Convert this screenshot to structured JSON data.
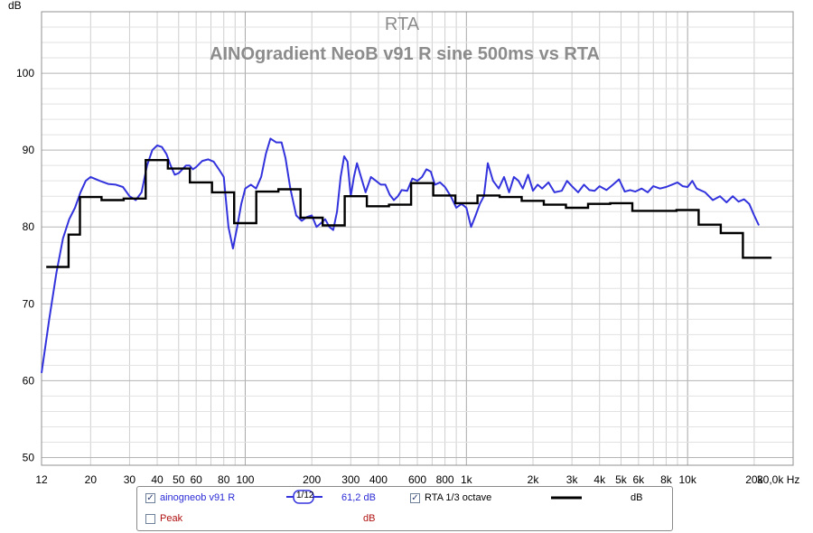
{
  "chart_data": {
    "type": "line",
    "title": "RTA",
    "subtitle": "AINOgradient NeoB v91 R sine 500ms vs RTA",
    "ylabel": "dB",
    "xlabel": "Hz",
    "x_scale": "log",
    "xlim": [
      12,
      30000
    ],
    "ylim": [
      49,
      108
    ],
    "grid": true,
    "x_tick_labels": [
      {
        "v": 12,
        "t": "12"
      },
      {
        "v": 20,
        "t": "20"
      },
      {
        "v": 30,
        "t": "30"
      },
      {
        "v": 40,
        "t": "40"
      },
      {
        "v": 50,
        "t": "50"
      },
      {
        "v": 60,
        "t": "60"
      },
      {
        "v": 80,
        "t": "80"
      },
      {
        "v": 100,
        "t": "100"
      },
      {
        "v": 200,
        "t": "200"
      },
      {
        "v": 300,
        "t": "300"
      },
      {
        "v": 400,
        "t": "400"
      },
      {
        "v": 600,
        "t": "600"
      },
      {
        "v": 800,
        "t": "800"
      },
      {
        "v": 1000,
        "t": "1k"
      },
      {
        "v": 2000,
        "t": "2k"
      },
      {
        "v": 3000,
        "t": "3k"
      },
      {
        "v": 4000,
        "t": "4k"
      },
      {
        "v": 5000,
        "t": "5k"
      },
      {
        "v": 6000,
        "t": "6k"
      },
      {
        "v": 8000,
        "t": "8k"
      },
      {
        "v": 10000,
        "t": "10k"
      },
      {
        "v": 20000,
        "t": "20k"
      },
      {
        "v": 30000,
        "t": "30,0k Hz"
      }
    ],
    "y_ticks": [
      50,
      60,
      70,
      80,
      90,
      100
    ],
    "series": [
      {
        "name": "ainogneob v91 R",
        "color": "#3333dd",
        "points": [
          [
            12,
            61
          ],
          [
            13,
            68
          ],
          [
            14,
            74
          ],
          [
            15,
            78.5
          ],
          [
            16,
            81
          ],
          [
            17,
            82.5
          ],
          [
            18,
            84.5
          ],
          [
            19,
            86
          ],
          [
            20,
            86.5
          ],
          [
            22,
            86
          ],
          [
            24,
            85.6
          ],
          [
            26,
            85.5
          ],
          [
            28,
            85.2
          ],
          [
            30,
            84
          ],
          [
            32,
            83.5
          ],
          [
            34,
            84.5
          ],
          [
            36,
            88
          ],
          [
            38,
            90
          ],
          [
            40,
            90.6
          ],
          [
            42,
            90.4
          ],
          [
            44,
            89.5
          ],
          [
            46,
            88
          ],
          [
            48,
            86.8
          ],
          [
            50,
            87
          ],
          [
            52,
            87.5
          ],
          [
            54,
            88
          ],
          [
            56,
            88
          ],
          [
            58,
            87.5
          ],
          [
            60,
            87.8
          ],
          [
            64,
            88.6
          ],
          [
            68,
            88.8
          ],
          [
            72,
            88.5
          ],
          [
            76,
            87.5
          ],
          [
            80,
            86.5
          ],
          [
            84,
            80
          ],
          [
            88,
            77.2
          ],
          [
            92,
            80
          ],
          [
            96,
            83
          ],
          [
            100,
            85
          ],
          [
            106,
            85.5
          ],
          [
            112,
            85
          ],
          [
            118,
            86.5
          ],
          [
            124,
            89.5
          ],
          [
            130,
            91.5
          ],
          [
            138,
            91
          ],
          [
            146,
            91
          ],
          [
            152,
            89
          ],
          [
            160,
            85
          ],
          [
            170,
            81.5
          ],
          [
            180,
            80.8
          ],
          [
            190,
            81.3
          ],
          [
            200,
            81.5
          ],
          [
            210,
            80
          ],
          [
            220,
            80.5
          ],
          [
            230,
            81
          ],
          [
            240,
            80
          ],
          [
            250,
            79.6
          ],
          [
            260,
            82
          ],
          [
            270,
            86.5
          ],
          [
            280,
            89.2
          ],
          [
            290,
            88.5
          ],
          [
            300,
            84
          ],
          [
            310,
            86.5
          ],
          [
            320,
            88.3
          ],
          [
            330,
            87
          ],
          [
            350,
            84.5
          ],
          [
            370,
            86.5
          ],
          [
            390,
            86
          ],
          [
            410,
            85.5
          ],
          [
            430,
            85.5
          ],
          [
            450,
            84.2
          ],
          [
            470,
            83.5
          ],
          [
            490,
            84
          ],
          [
            510,
            84.8
          ],
          [
            540,
            84.7
          ],
          [
            570,
            86.3
          ],
          [
            600,
            86
          ],
          [
            630,
            86.5
          ],
          [
            660,
            87.5
          ],
          [
            690,
            87.2
          ],
          [
            720,
            85.5
          ],
          [
            760,
            85.8
          ],
          [
            800,
            85.2
          ],
          [
            850,
            84
          ],
          [
            900,
            82.5
          ],
          [
            950,
            83
          ],
          [
            1000,
            82.5
          ],
          [
            1050,
            80
          ],
          [
            1100,
            81.5
          ],
          [
            1150,
            83
          ],
          [
            1200,
            84
          ],
          [
            1250,
            88.3
          ],
          [
            1320,
            86
          ],
          [
            1400,
            85
          ],
          [
            1480,
            86.5
          ],
          [
            1560,
            84.5
          ],
          [
            1640,
            86.5
          ],
          [
            1720,
            86
          ],
          [
            1800,
            85
          ],
          [
            1900,
            86.8
          ],
          [
            2000,
            84.7
          ],
          [
            2100,
            85.5
          ],
          [
            2200,
            85
          ],
          [
            2350,
            85.8
          ],
          [
            2500,
            84.5
          ],
          [
            2700,
            84.7
          ],
          [
            2850,
            86
          ],
          [
            3000,
            85.3
          ],
          [
            3200,
            84.5
          ],
          [
            3400,
            85.5
          ],
          [
            3600,
            84.8
          ],
          [
            3800,
            84.7
          ],
          [
            4000,
            85.3
          ],
          [
            4300,
            84.8
          ],
          [
            4600,
            85.5
          ],
          [
            4900,
            86.2
          ],
          [
            5200,
            84.6
          ],
          [
            5500,
            84.8
          ],
          [
            5800,
            84.6
          ],
          [
            6200,
            85
          ],
          [
            6600,
            84.5
          ],
          [
            7000,
            85.3
          ],
          [
            7500,
            85
          ],
          [
            8000,
            85.2
          ],
          [
            8500,
            85.5
          ],
          [
            9000,
            85.8
          ],
          [
            9500,
            85.3
          ],
          [
            10000,
            85.2
          ],
          [
            10500,
            86
          ],
          [
            11000,
            85
          ],
          [
            12000,
            84.5
          ],
          [
            13000,
            83.5
          ],
          [
            14000,
            84
          ],
          [
            15000,
            83.2
          ],
          [
            16000,
            84
          ],
          [
            17000,
            83.3
          ],
          [
            18000,
            83.6
          ],
          [
            19000,
            83
          ],
          [
            20000,
            81.5
          ],
          [
            21000,
            80.2
          ]
        ]
      },
      {
        "name": "RTA 1/3 octave",
        "color": "#000000",
        "step_points": [
          [
            12.6,
            74.8
          ],
          [
            15.9,
            79
          ],
          [
            17.9,
            83.9
          ],
          [
            20,
            83.9
          ],
          [
            22.4,
            83.5
          ],
          [
            28.2,
            83.7
          ],
          [
            35.5,
            88.7
          ],
          [
            44.7,
            87.6
          ],
          [
            56.2,
            85.8
          ],
          [
            70.8,
            84.5
          ],
          [
            89.1,
            80.5
          ],
          [
            112.2,
            84.6
          ],
          [
            141.3,
            84.9
          ],
          [
            177.8,
            81.2
          ],
          [
            223.9,
            80.2
          ],
          [
            281.8,
            84
          ],
          [
            354.8,
            82.7
          ],
          [
            446.7,
            82.9
          ],
          [
            562.3,
            85.7
          ],
          [
            707.9,
            84.1
          ],
          [
            891.3,
            83.1
          ],
          [
            1122,
            84.1
          ],
          [
            1413,
            83.9
          ],
          [
            1778,
            83.4
          ],
          [
            2239,
            82.9
          ],
          [
            2818,
            82.5
          ],
          [
            3548,
            83
          ],
          [
            4467,
            83.1
          ],
          [
            5623,
            82.1
          ],
          [
            7079,
            82.1
          ],
          [
            8913,
            82.2
          ],
          [
            11220,
            80.3
          ],
          [
            14130,
            79.2
          ],
          [
            17780,
            76
          ],
          [
            22390,
            76
          ]
        ]
      }
    ]
  },
  "legend": {
    "series1_name": "ainogneob v91 R",
    "series1_smoothing": "1/12",
    "series1_value": "61,2 dB",
    "series2_name": "RTA 1/3 octave",
    "series2_value": "dB",
    "peak_label": "Peak",
    "peak_value": "dB",
    "checkmark": "✓"
  }
}
